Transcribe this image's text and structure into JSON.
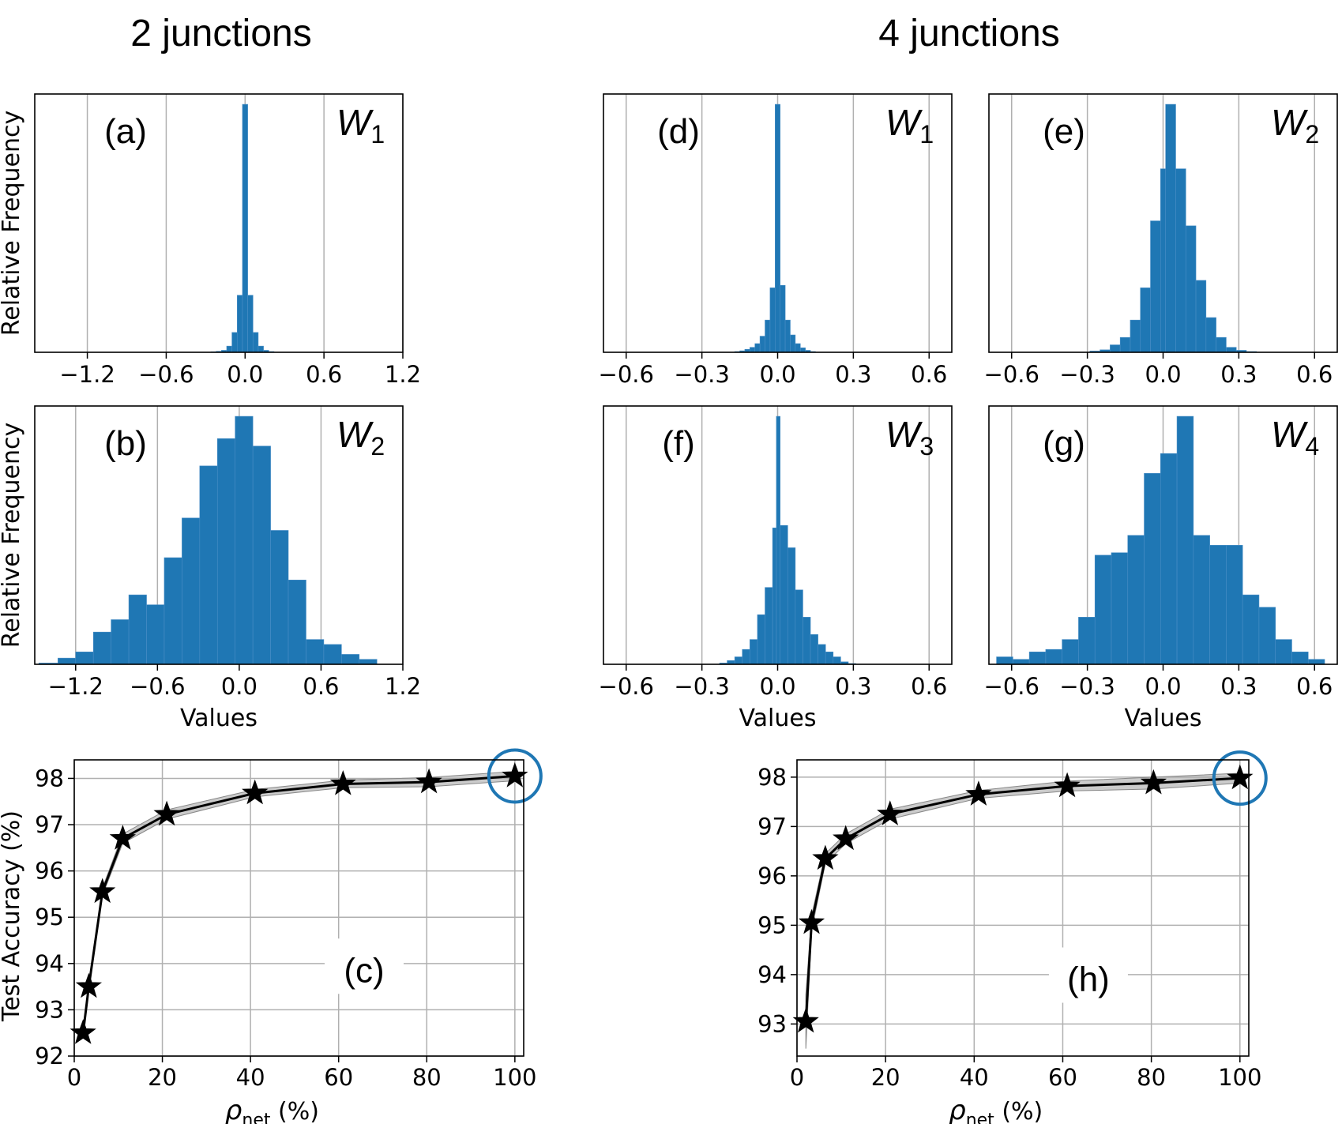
{
  "section_titles": {
    "left": "2 junctions",
    "right": "4 junctions"
  },
  "labels": {
    "relative_frequency": "Relative Frequency",
    "values": "Values",
    "test_accuracy": "Test Accuracy (%)",
    "rho": "ρ",
    "rho_sub": "net",
    "rho_unit": " (%)"
  },
  "colors": {
    "bar": "#1f77b4",
    "grid": "#b0b0b0",
    "line": "#000000",
    "band": "#a9a9a9",
    "highlight_circle": "#1f77b4"
  },
  "chart_data": [
    {
      "id": "a",
      "type": "bar",
      "panel_label": "(a)",
      "weight_label": "W",
      "weight_sub": "1",
      "ylabel": "Relative Frequency",
      "xlabel": "",
      "xlim": [
        -1.6,
        1.2
      ],
      "xticks": [
        -1.2,
        -0.6,
        0.0,
        0.6,
        1.2
      ],
      "xtick_labels": [
        "−1.2",
        "−0.6",
        "0.0",
        "0.6",
        "1.2"
      ],
      "bin_edges": [
        -0.26,
        -0.22,
        -0.18,
        -0.14,
        -0.1,
        -0.06,
        -0.02,
        0.02,
        0.06,
        0.1,
        0.14,
        0.18,
        0.22
      ],
      "values": [
        0.002,
        0.004,
        0.008,
        0.025,
        0.08,
        0.23,
        1.0,
        0.23,
        0.08,
        0.025,
        0.008,
        0.003
      ]
    },
    {
      "id": "b",
      "type": "bar",
      "panel_label": "(b)",
      "weight_label": "W",
      "weight_sub": "2",
      "ylabel": "Relative Frequency",
      "xlabel": "Values",
      "xlim": [
        -1.5,
        1.2
      ],
      "xticks": [
        -1.2,
        -0.6,
        0.0,
        0.6,
        1.2
      ],
      "xtick_labels": [
        "−1.2",
        "−0.6",
        "0.0",
        "0.6",
        "1.2"
      ],
      "bin_edges": [
        -1.47,
        -1.33,
        -1.2,
        -1.07,
        -0.94,
        -0.81,
        -0.68,
        -0.55,
        -0.42,
        -0.29,
        -0.16,
        -0.03,
        0.1,
        0.23,
        0.36,
        0.49,
        0.62,
        0.75,
        0.88,
        1.01,
        1.14
      ],
      "values": [
        0.005,
        0.025,
        0.05,
        0.13,
        0.18,
        0.28,
        0.24,
        0.43,
        0.59,
        0.8,
        0.91,
        1.0,
        0.88,
        0.54,
        0.34,
        0.1,
        0.08,
        0.04,
        0.02,
        0.0
      ]
    },
    {
      "id": "c",
      "type": "line",
      "panel_label": "(c)",
      "xlabel": "ρnet (%)",
      "ylabel": "Test Accuracy (%)",
      "xlim": [
        0,
        102
      ],
      "ylim": [
        92,
        98.4
      ],
      "xticks": [
        0,
        20,
        40,
        60,
        80,
        100
      ],
      "xtick_labels": [
        "0",
        "20",
        "40",
        "60",
        "80",
        "100"
      ],
      "yticks": [
        92,
        93,
        94,
        95,
        96,
        97,
        98
      ],
      "ytick_labels": [
        "92",
        "93",
        "94",
        "95",
        "96",
        "97",
        "98"
      ],
      "x": [
        2,
        3.3,
        6.4,
        11,
        21,
        41,
        61,
        80.5,
        100
      ],
      "y": [
        92.5,
        93.5,
        95.55,
        96.7,
        97.22,
        97.68,
        97.88,
        97.92,
        98.05
      ],
      "band_halfwidth": [
        0.05,
        0.06,
        0.08,
        0.1,
        0.1,
        0.08,
        0.08,
        0.1,
        0.1
      ],
      "highlight_index": 8
    },
    {
      "id": "d",
      "type": "bar",
      "panel_label": "(d)",
      "weight_label": "W",
      "weight_sub": "1",
      "ylabel": "",
      "xlabel": "",
      "xlim": [
        -0.69,
        0.69
      ],
      "xticks": [
        -0.6,
        -0.3,
        0.0,
        0.3,
        0.6
      ],
      "xtick_labels": [
        "−0.6",
        "−0.3",
        "0.0",
        "0.3",
        "0.6"
      ],
      "bin_edges": [
        -0.17,
        -0.15,
        -0.13,
        -0.11,
        -0.09,
        -0.07,
        -0.05,
        -0.03,
        -0.01,
        0.01,
        0.03,
        0.05,
        0.07,
        0.09,
        0.11,
        0.13,
        0.15
      ],
      "values": [
        0.003,
        0.006,
        0.012,
        0.02,
        0.035,
        0.065,
        0.13,
        0.26,
        1.0,
        0.27,
        0.13,
        0.07,
        0.035,
        0.018,
        0.008,
        0.003
      ]
    },
    {
      "id": "e",
      "type": "bar",
      "panel_label": "(e)",
      "weight_label": "W",
      "weight_sub": "2",
      "ylabel": "",
      "xlabel": "",
      "xlim": [
        -0.69,
        0.69
      ],
      "xticks": [
        -0.6,
        -0.3,
        0.0,
        0.3,
        0.6
      ],
      "xtick_labels": [
        "−0.6",
        "−0.3",
        "0.0",
        "0.3",
        "0.6"
      ],
      "bin_edges": [
        -0.29,
        -0.25,
        -0.21,
        -0.17,
        -0.13,
        -0.09,
        -0.05,
        -0.01,
        0.01,
        0.05,
        0.09,
        0.13,
        0.17,
        0.21,
        0.25,
        0.29,
        0.33,
        0.37
      ],
      "values": [
        0.005,
        0.01,
        0.03,
        0.06,
        0.13,
        0.26,
        0.53,
        0.74,
        1.0,
        0.74,
        0.51,
        0.29,
        0.14,
        0.06,
        0.02,
        0.008,
        0.003
      ]
    },
    {
      "id": "f",
      "type": "bar",
      "panel_label": "(f)",
      "weight_label": "W",
      "weight_sub": "3",
      "ylabel": "",
      "xlabel": "Values",
      "xlim": [
        -0.69,
        0.69
      ],
      "xticks": [
        -0.6,
        -0.3,
        0.0,
        0.3,
        0.6
      ],
      "xtick_labels": [
        "−0.6",
        "−0.3",
        "0.0",
        "0.3",
        "0.6"
      ],
      "bin_edges": [
        -0.23,
        -0.2,
        -0.17,
        -0.14,
        -0.11,
        -0.08,
        -0.05,
        -0.02,
        -0.005,
        0.01,
        0.04,
        0.07,
        0.1,
        0.13,
        0.16,
        0.19,
        0.22,
        0.25,
        0.28,
        0.31
      ],
      "values": [
        0.005,
        0.015,
        0.03,
        0.06,
        0.1,
        0.2,
        0.31,
        0.55,
        1.0,
        0.56,
        0.47,
        0.3,
        0.19,
        0.12,
        0.08,
        0.05,
        0.03,
        0.01,
        0.003
      ]
    },
    {
      "id": "g",
      "type": "bar",
      "panel_label": "(g)",
      "weight_label": "W",
      "weight_sub": "4",
      "ylabel": "",
      "xlabel": "Values",
      "xlim": [
        -0.69,
        0.69
      ],
      "xticks": [
        -0.6,
        -0.3,
        0.0,
        0.3,
        0.6
      ],
      "xtick_labels": [
        "−0.6",
        "−0.3",
        "0.0",
        "0.3",
        "0.6"
      ],
      "bin_edges": [
        -0.66,
        -0.595,
        -0.53,
        -0.465,
        -0.4,
        -0.335,
        -0.27,
        -0.205,
        -0.14,
        -0.075,
        -0.01,
        0.055,
        0.12,
        0.185,
        0.25,
        0.315,
        0.38,
        0.445,
        0.51,
        0.575,
        0.64
      ],
      "values": [
        0.03,
        0.02,
        0.05,
        0.06,
        0.1,
        0.19,
        0.44,
        0.45,
        0.52,
        0.77,
        0.85,
        1.0,
        0.52,
        0.48,
        0.48,
        0.28,
        0.23,
        0.1,
        0.05,
        0.02
      ]
    },
    {
      "id": "h",
      "type": "line",
      "panel_label": "(h)",
      "xlabel": "ρnet (%)",
      "ylabel": "",
      "xlim": [
        0,
        102
      ],
      "ylim": [
        92.35,
        98.35
      ],
      "xticks": [
        0,
        20,
        40,
        60,
        80,
        100
      ],
      "xtick_labels": [
        "0",
        "20",
        "40",
        "60",
        "80",
        "100"
      ],
      "yticks": [
        93,
        94,
        95,
        96,
        97,
        98
      ],
      "ytick_labels": [
        "93",
        "94",
        "95",
        "96",
        "97",
        "98"
      ],
      "x": [
        2,
        3.3,
        6.4,
        11,
        21,
        41,
        61,
        80.5,
        100
      ],
      "y": [
        93.05,
        95.05,
        96.35,
        96.75,
        97.25,
        97.65,
        97.82,
        97.88,
        97.98
      ],
      "band_halfwidth": [
        0.55,
        0.15,
        0.1,
        0.1,
        0.1,
        0.08,
        0.1,
        0.12,
        0.1
      ],
      "highlight_index": 8
    }
  ]
}
